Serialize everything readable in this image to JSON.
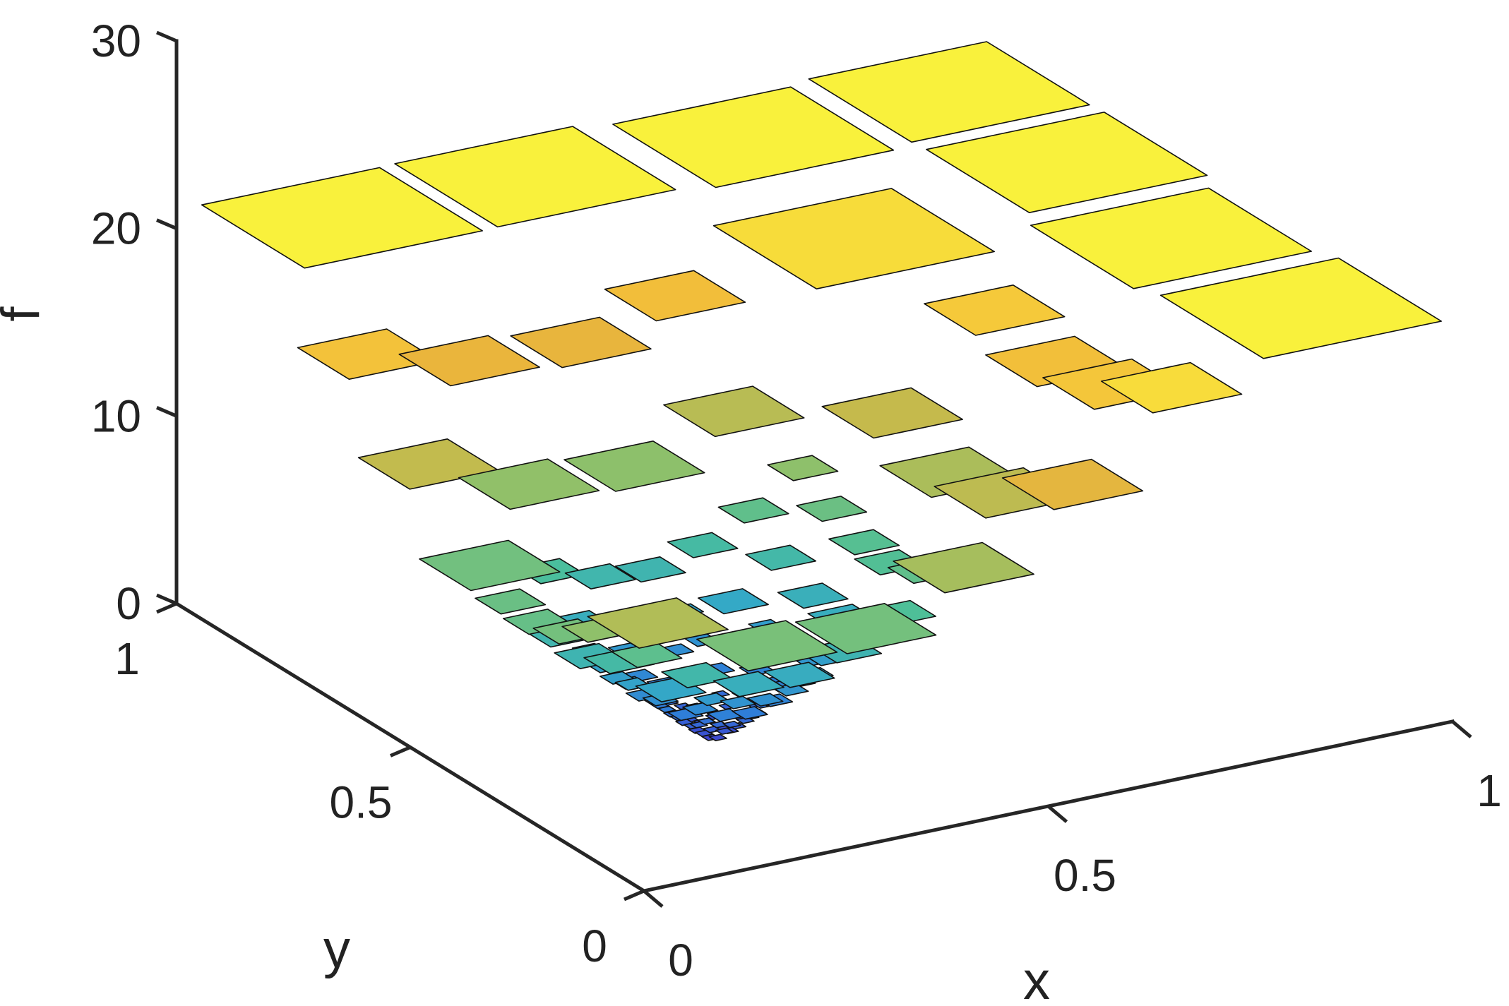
{
  "chart_data": {
    "type": "surface3d",
    "description_of_content": "",
    "title": "",
    "xlabel": "x",
    "ylabel": "y",
    "zlabel": "f",
    "xlim": [
      0,
      1
    ],
    "ylim": [
      0,
      1
    ],
    "zlim": [
      0,
      30
    ],
    "x_ticks": [
      "0",
      "0.5",
      "1"
    ],
    "y_ticks": [
      "0",
      "0.5",
      "1"
    ],
    "z_ticks": [
      "0",
      "10",
      "20",
      "30"
    ],
    "colormap": [
      "#3e3fd0",
      "#2f7fd8",
      "#34a9c6",
      "#4bbf9a",
      "#8fc06a",
      "#c9ba4a",
      "#f0b43a",
      "#f7d43a",
      "#f9f53c"
    ],
    "grid": false,
    "legend": "none",
    "surface_note": "cone-shaped piecewise-constant surface: f rises from about 1 at (x≈0.25, y≈0.3) to about 21 at the far edges"
  }
}
